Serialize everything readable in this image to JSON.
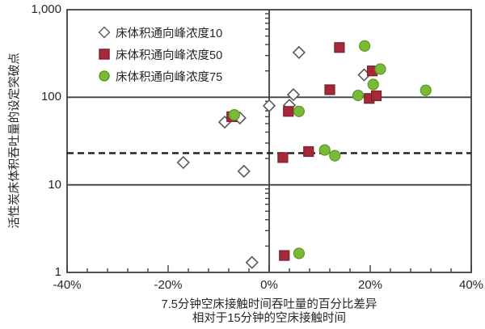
{
  "chart_data": {
    "type": "scatter",
    "xlabel_line1": "7.5分钟空床接触时间吞吐量的百分比差异",
    "xlabel_line2": "相对于15分钟的空床接触时间",
    "ylabel": "活性炭床体积吞吐量的设定突破点",
    "x_ticks": [
      "-40%",
      "-20%",
      "0%",
      "20%",
      "40%"
    ],
    "x_tick_values": [
      -40,
      -20,
      0,
      20,
      40
    ],
    "x_minor_step": 4,
    "xlim": [
      -40,
      40
    ],
    "y_ticks": [
      "1",
      "10",
      "100",
      "1,000"
    ],
    "y_tick_values": [
      1,
      10,
      100,
      1000
    ],
    "ylim": [
      1,
      1000
    ],
    "y_scale": "log",
    "grid_y_values": [
      10,
      100
    ],
    "reference_line_y": 23,
    "axis_color": "#3f3f3f",
    "series": [
      {
        "name": "床体积通向峰浓度10",
        "marker": "diamond",
        "fill": "#ffffff",
        "stroke": "#58595b",
        "points": [
          [
            -17,
            18
          ],
          [
            -8.8,
            52
          ],
          [
            -5.8,
            58
          ],
          [
            -5,
            14.3
          ],
          [
            -3.4,
            1.3
          ],
          [
            0,
            80
          ],
          [
            4,
            81
          ],
          [
            4.8,
            107
          ],
          [
            5.9,
            325
          ],
          [
            18.8,
            180
          ]
        ]
      },
      {
        "name": "床体积通向峰浓度50",
        "marker": "square",
        "fill": "#a6293a",
        "stroke": "#7d1f2c",
        "points": [
          [
            -7.4,
            60
          ],
          [
            2.7,
            20.5
          ],
          [
            3.8,
            69
          ],
          [
            7.8,
            24
          ],
          [
            12,
            122
          ],
          [
            13.9,
            370
          ],
          [
            19.8,
            97
          ],
          [
            21.2,
            104
          ],
          [
            20.4,
            200
          ],
          [
            3,
            1.56
          ]
        ]
      },
      {
        "name": "床体积通向峰浓度75",
        "marker": "circle",
        "fill": "#79ba36",
        "stroke": "#5d9527",
        "points": [
          [
            -6.9,
            63
          ],
          [
            5.9,
            69
          ],
          [
            11,
            25
          ],
          [
            13,
            21.5
          ],
          [
            17.6,
            105
          ],
          [
            18.9,
            385
          ],
          [
            20.6,
            140
          ],
          [
            22,
            210
          ],
          [
            31,
            120
          ],
          [
            5.9,
            1.65
          ]
        ]
      }
    ]
  }
}
